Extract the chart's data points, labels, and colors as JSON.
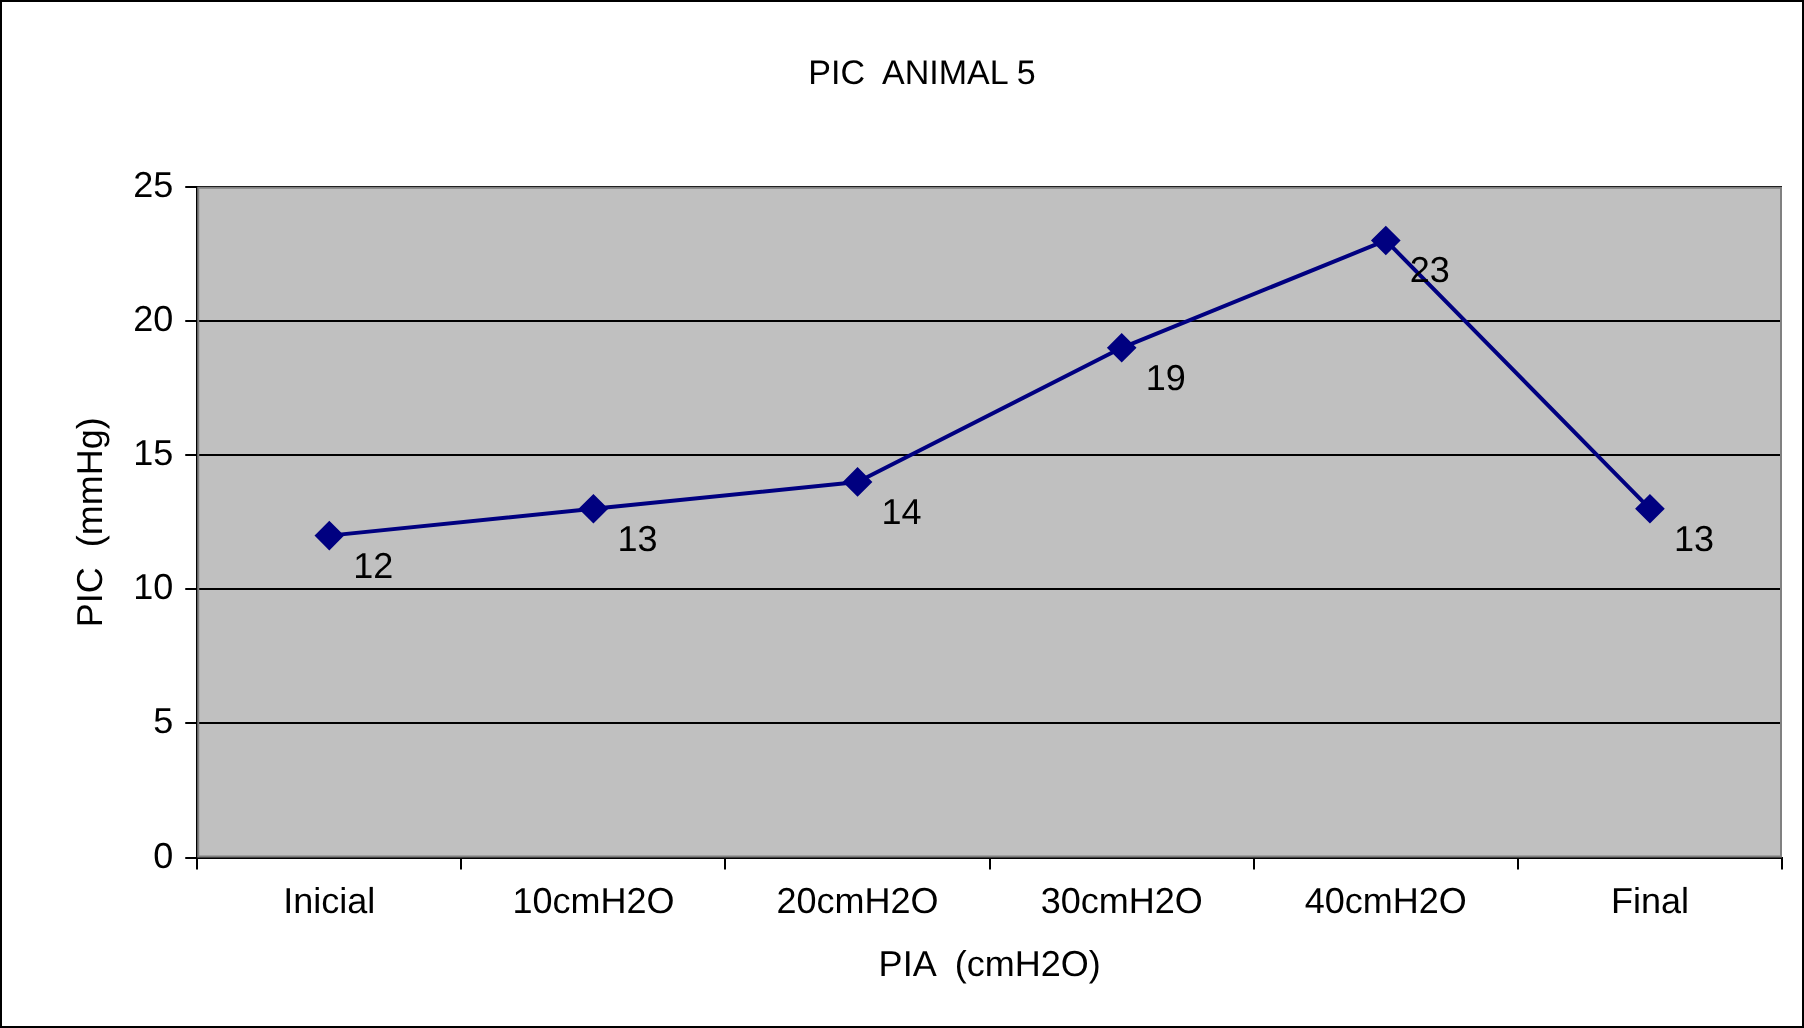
{
  "chart_data": {
    "type": "line",
    "title": "PIC  ANIMAL 5",
    "xlabel": "PIA  (cmH2O)",
    "ylabel": "PIC  (mmHg)",
    "categories": [
      "Inicial",
      "10cmH2O",
      "20cmH2O",
      "30cmH2O",
      "40cmH2O",
      "Final"
    ],
    "series": [
      {
        "color": "#000080",
        "values": [
          12,
          13,
          14,
          19,
          23,
          13
        ]
      }
    ],
    "ylim": [
      0,
      25
    ],
    "yticks": [
      0,
      5,
      10,
      15,
      20,
      25
    ],
    "grid": "y",
    "legend": false,
    "marker": "diamond",
    "line_style": "solid",
    "data_labels": true
  }
}
